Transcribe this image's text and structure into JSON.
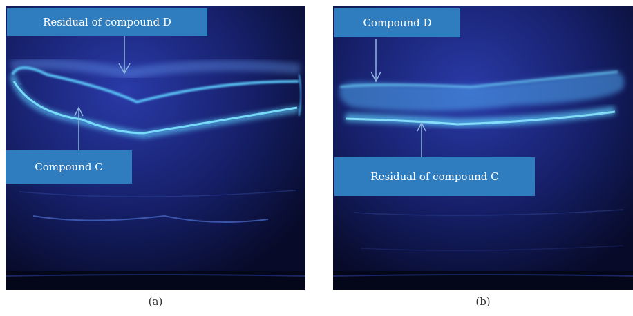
{
  "panel_a": {
    "label_top": "Residual of compound D",
    "label_bottom": "Compound C",
    "caption": "(a)"
  },
  "panel_b": {
    "label_top": "Compound D",
    "label_bottom": "Residual of compound C",
    "caption": "(b)"
  },
  "colors": {
    "background": "#0a0f3a",
    "band": "#5fd0ff",
    "label_box": "#2f7dbf",
    "arrow": "#8fb6e0"
  }
}
